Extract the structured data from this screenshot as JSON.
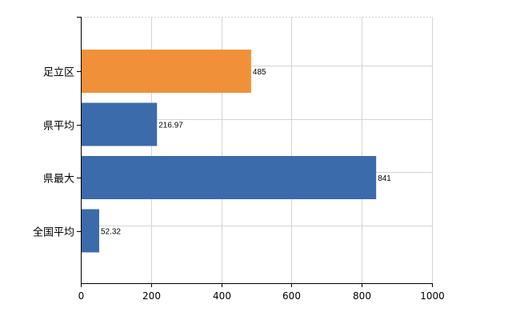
{
  "chart_data": {
    "type": "bar",
    "orientation": "horizontal",
    "categories": [
      "足立区",
      "県平均",
      "県最大",
      "全国平均"
    ],
    "values": [
      485,
      216.97,
      841,
      52.32
    ],
    "value_labels": [
      "485",
      "216.97",
      "841",
      "52.32"
    ],
    "bar_colors": [
      "#F0913A",
      "#3B6BAA",
      "#3B6BAA",
      "#3B6BAA"
    ],
    "xlim": [
      0,
      1000
    ],
    "xticks": [
      0,
      200,
      400,
      600,
      800,
      1000
    ],
    "xtick_labels": [
      "0",
      "200",
      "400",
      "600",
      "800",
      "1000"
    ],
    "grid": true,
    "grid_color": "#d4d4d4",
    "title": "",
    "xlabel": "",
    "ylabel": ""
  }
}
